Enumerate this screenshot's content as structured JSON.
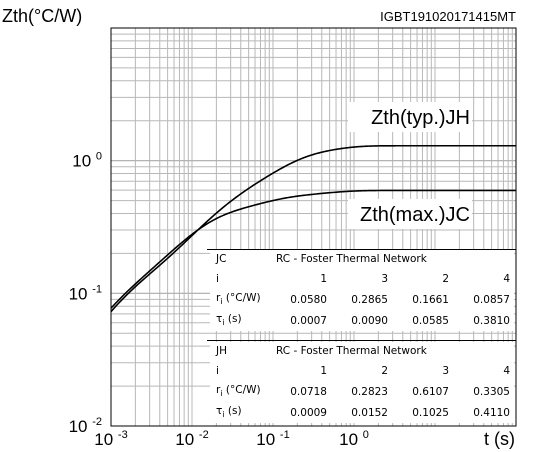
{
  "chart_data": {
    "type": "line",
    "ylabel": "Zth(°C/W)",
    "xlabel": "t (s)",
    "x_scale": "log",
    "y_scale": "log",
    "xlim": [
      0.001,
      100
    ],
    "ylim": [
      0.01,
      10
    ],
    "x_tick_labels": [
      {
        "value": 0.001,
        "base": "10",
        "exp": "-3"
      },
      {
        "value": 0.01,
        "base": "10",
        "exp": "-2"
      },
      {
        "value": 0.1,
        "base": "10",
        "exp": "-1"
      },
      {
        "value": 1,
        "base": "10",
        "exp": "0"
      }
    ],
    "y_tick_labels": [
      {
        "value": 0.01,
        "base": "10",
        "exp": "-2"
      },
      {
        "value": 0.1,
        "base": "10",
        "exp": "-1"
      },
      {
        "value": 1,
        "base": "10",
        "exp": "0"
      }
    ],
    "grid": true,
    "annotation": "IGBT191020171415MT",
    "series": [
      {
        "name": "Zth(typ.)JH",
        "r": [
          0.0718,
          0.2823,
          0.6107,
          0.3305
        ],
        "tau": [
          0.0009,
          0.0152,
          0.1025,
          0.411
        ]
      },
      {
        "name": "Zth(max.)JC",
        "r": [
          0.058,
          0.2865,
          0.1661,
          0.0857
        ],
        "tau": [
          0.0007,
          0.009,
          0.0585,
          0.381
        ]
      }
    ],
    "tables": [
      {
        "id": "JC",
        "title": "RC - Foster Thermal Network",
        "i": [
          "1",
          "3",
          "2",
          "4"
        ],
        "r": [
          "0.0580",
          "0.2865",
          "0.1661",
          "0.0857"
        ],
        "tau": [
          "0.0007",
          "0.0090",
          "0.0585",
          "0.3810"
        ]
      },
      {
        "id": "JH",
        "title": "RC - Foster Thermal Network",
        "i": [
          "1",
          "2",
          "3",
          "4"
        ],
        "r": [
          "0.0718",
          "0.2823",
          "0.6107",
          "0.3305"
        ],
        "tau": [
          "0.0009",
          "0.0152",
          "0.1025",
          "0.4110"
        ]
      }
    ],
    "row_labels": {
      "i": "i",
      "r": "r",
      "r_sub": "i",
      "r_unit": " (°C/W)",
      "tau": "τ",
      "tau_sub": "i",
      "tau_unit": " (s)"
    }
  }
}
